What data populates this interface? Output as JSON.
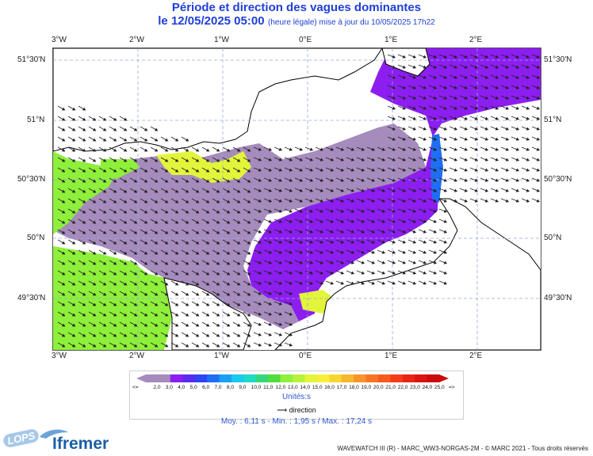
{
  "header": {
    "title": "Période et direction des vagues dominantes",
    "subtitle_main": "le 12/05/2025 05:00",
    "subtitle_note": "(heure légale) mise à jour du 10/05/2025 17h22"
  },
  "axes": {
    "lon_labels": [
      "3°W",
      "2°W",
      "1°W",
      "0°E",
      "1°E",
      "2°E"
    ],
    "lat_labels": [
      "51°30'N",
      "51°N",
      "50°30'N",
      "50°N",
      "49°30'N"
    ]
  },
  "legend": {
    "ticks": [
      "<=",
      "2,0",
      "3,0",
      "4,0",
      "5,0",
      "6,0",
      "7,0",
      "8,0",
      "9,0",
      "10,0",
      "11,0",
      "12,0",
      "13,0",
      "14,0",
      "15,0",
      "16,0",
      "17,0",
      "18,0",
      "19,0",
      "20,0",
      "21,0",
      "22,0",
      "23,0",
      "24,0",
      "25,0",
      "=>"
    ],
    "colors": [
      "#a68bbd",
      "#a68bbd",
      "#8c1ef0",
      "#5a2af0",
      "#2f44f2",
      "#1f6ef4",
      "#1a9ff3",
      "#19c9ef",
      "#1fd9c3",
      "#33d77a",
      "#4fdc3d",
      "#8ef03a",
      "#b8f23a",
      "#e3f53a",
      "#f7f03a",
      "#f8d632",
      "#f8b62c",
      "#f89528",
      "#f87622",
      "#f75a1e",
      "#f53c19",
      "#ea2516",
      "#db1512",
      "#cc0b0f"
    ],
    "units": "Unités:s",
    "direction_label": "direction"
  },
  "stats": "Moy. : 6,11 s   -   Min. : 1,95 s / Max. : 17,24 s",
  "credit": "WAVEWATCH III (R) - MARC_WW3-NORGAS-2M - © MARC 2021 - Tous droits réservés",
  "logos": {
    "lops": "LOPS",
    "ifremer": "Ifremer"
  },
  "palette": {
    "land": "#ffffff",
    "grey_sea": "#a68bbd",
    "violet_sea": "#8c1ef0",
    "green_sea": "#8ef03a",
    "yellow_sea": "#e3f53a",
    "blue_sea": "#1f6ef4",
    "grid": "#9aa6e0"
  }
}
